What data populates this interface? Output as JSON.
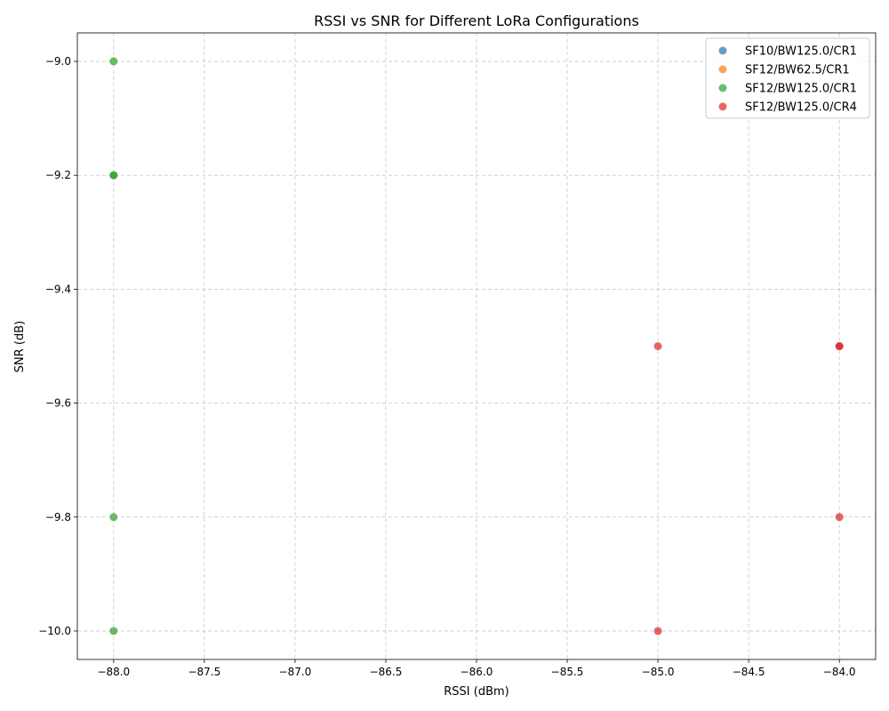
{
  "chart_data": {
    "type": "scatter",
    "title": "RSSI vs SNR for Different LoRa Configurations",
    "xlabel": "RSSI (dBm)",
    "ylabel": "SNR (dB)",
    "xlim": [
      -88.2,
      -83.8
    ],
    "ylim": [
      -10.05,
      -8.95
    ],
    "xticks": [
      -88.0,
      -87.5,
      -87.0,
      -86.5,
      -86.0,
      -85.5,
      -85.0,
      -84.5,
      -84.0
    ],
    "xtick_labels": [
      "−88.0",
      "−87.5",
      "−87.0",
      "−86.5",
      "−86.0",
      "−85.5",
      "−85.0",
      "−84.5",
      "−84.0"
    ],
    "yticks": [
      -9.0,
      -9.2,
      -9.4,
      -9.6,
      -9.8,
      -10.0
    ],
    "ytick_labels": [
      "−9.0",
      "−9.2",
      "−9.4",
      "−9.6",
      "−9.8",
      "−10.0"
    ],
    "grid": true,
    "legend_position": "top-right",
    "series": [
      {
        "name": "SF10/BW125.0/CR1",
        "color": "#1f77b4",
        "points": []
      },
      {
        "name": "SF12/BW62.5/CR1",
        "color": "#ff7f0e",
        "points": []
      },
      {
        "name": "SF12/BW125.0/CR1",
        "color": "#2ca02c",
        "points": [
          [
            -88.0,
            -9.0
          ],
          [
            -88.0,
            -9.2
          ],
          [
            -88.0,
            -9.2
          ],
          [
            -88.0,
            -9.8
          ],
          [
            -88.0,
            -10.0
          ]
        ]
      },
      {
        "name": "SF12/BW125.0/CR4",
        "color": "#d62728",
        "points": [
          [
            -85.0,
            -9.5
          ],
          [
            -84.0,
            -9.5
          ],
          [
            -84.0,
            -9.5
          ],
          [
            -84.0,
            -9.8
          ],
          [
            -85.0,
            -10.0
          ]
        ]
      }
    ]
  }
}
